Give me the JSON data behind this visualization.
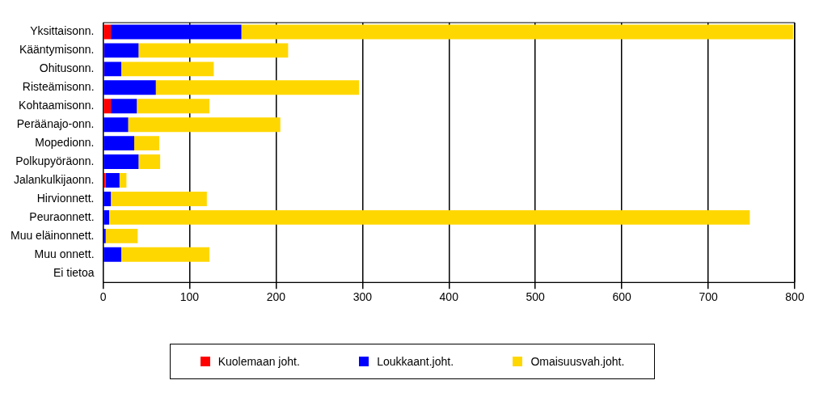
{
  "chart_data": {
    "type": "bar",
    "orientation": "horizontal",
    "stacked": true,
    "categories": [
      "Yksittaisonn.",
      "Kääntymisonn.",
      "Ohitusonn.",
      "Risteämisonn.",
      "Kohtaamisonn.",
      "Peräänajo-onn.",
      "Mopedionn.",
      "Polkupyöräonn.",
      "Jalankulkijaonn.",
      "Hirvionnett.",
      "Peuraonnett.",
      "Muu eläinonnett.",
      "Muu onnett.",
      "Ei tietoa"
    ],
    "series": [
      {
        "name": "Kuolemaan joht.",
        "color": "#ff0000",
        "values": [
          9,
          1,
          1,
          0,
          9,
          0,
          0,
          0,
          3,
          0,
          0,
          0,
          0,
          0
        ]
      },
      {
        "name": "Loukkaant.joht.",
        "color": "#0000ff",
        "values": [
          151,
          40,
          20,
          61,
          30,
          29,
          36,
          41,
          16,
          9,
          7,
          3,
          21,
          0
        ]
      },
      {
        "name": "Omaisuusvah.joht.",
        "color": "#ffd700",
        "values": [
          638,
          173,
          107,
          235,
          84,
          176,
          29,
          25,
          8,
          111,
          741,
          37,
          102,
          0
        ]
      }
    ],
    "xlim": [
      0,
      800
    ],
    "xticks": [
      0,
      100,
      200,
      300,
      400,
      500,
      600,
      700,
      800
    ],
    "grid": "x",
    "legend": "bottom"
  }
}
